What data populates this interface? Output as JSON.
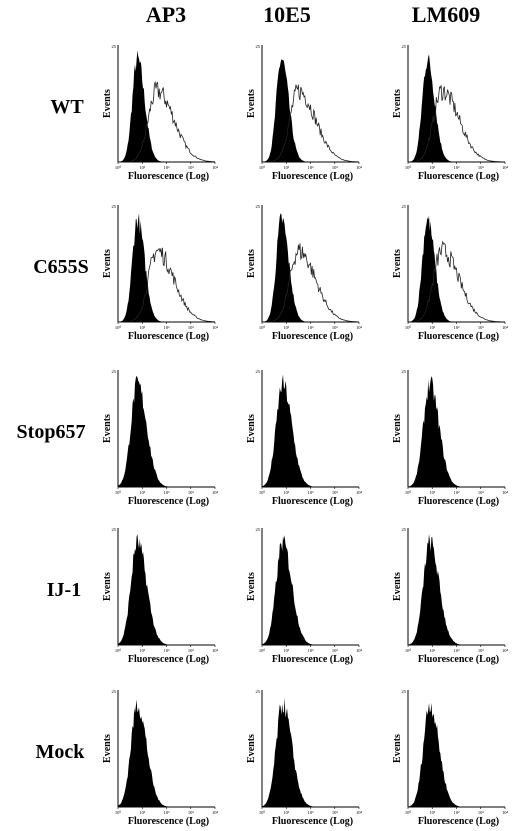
{
  "chart_data": {
    "type": "histogram-grid",
    "columns": [
      "AP3",
      "10E5",
      "LM609"
    ],
    "rows": [
      "WT",
      "C655S",
      "Stop657",
      "IJ-1",
      "Mock"
    ],
    "xlabel": "Fluorescence (Log)",
    "ylabel": "Events",
    "x_ticks": [
      "10⁰",
      "10¹",
      "10²",
      "10³",
      "10⁴"
    ],
    "y_top_tick": "25",
    "xscale": "log",
    "xlim": [
      1,
      10000
    ],
    "background_peak_log": 0.8,
    "panels": [
      {
        "row": "WT",
        "column": "AP3",
        "positive_shoulder": true,
        "positive_peak_log": 1.6
      },
      {
        "row": "WT",
        "column": "10E5",
        "positive_shoulder": true,
        "positive_peak_log": 1.5
      },
      {
        "row": "WT",
        "column": "LM609",
        "positive_shoulder": true,
        "positive_peak_log": 1.4
      },
      {
        "row": "C655S",
        "column": "AP3",
        "positive_shoulder": true,
        "positive_peak_log": 1.6
      },
      {
        "row": "C655S",
        "column": "10E5",
        "positive_shoulder": true,
        "positive_peak_log": 1.5
      },
      {
        "row": "C655S",
        "column": "LM609",
        "positive_shoulder": true,
        "positive_peak_log": 1.4
      },
      {
        "row": "Stop657",
        "column": "AP3",
        "positive_shoulder": false
      },
      {
        "row": "Stop657",
        "column": "10E5",
        "positive_shoulder": false
      },
      {
        "row": "Stop657",
        "column": "LM609",
        "positive_shoulder": false
      },
      {
        "row": "IJ-1",
        "column": "AP3",
        "positive_shoulder": false
      },
      {
        "row": "IJ-1",
        "column": "10E5",
        "positive_shoulder": false
      },
      {
        "row": "IJ-1",
        "column": "LM609",
        "positive_shoulder": false
      },
      {
        "row": "Mock",
        "column": "AP3",
        "positive_shoulder": false
      },
      {
        "row": "Mock",
        "column": "10E5",
        "positive_shoulder": false
      },
      {
        "row": "Mock",
        "column": "LM609",
        "positive_shoulder": false
      }
    ]
  }
}
